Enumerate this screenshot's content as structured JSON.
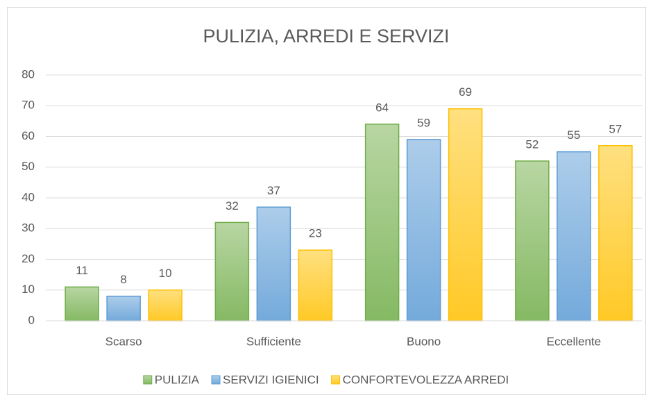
{
  "chart_data": {
    "type": "bar",
    "title": "PULIZIA, ARREDI E SERVIZI",
    "categories": [
      "Scarso",
      "Sufficiente",
      "Buono",
      "Eccellente"
    ],
    "series": [
      {
        "name": "PULIZIA",
        "color": "#70ad47",
        "values": [
          11,
          32,
          64,
          52
        ]
      },
      {
        "name": "SERVIZI IGIENICI",
        "color": "#5b9bd5",
        "values": [
          8,
          37,
          59,
          55
        ]
      },
      {
        "name": "CONFORTEVOLEZZA ARREDI",
        "color": "#ffc000",
        "values": [
          10,
          23,
          69,
          57
        ]
      }
    ],
    "ylim": [
      0,
      80
    ],
    "yticks": [
      0,
      10,
      20,
      30,
      40,
      50,
      60,
      70,
      80
    ],
    "grid": true,
    "legend": "bottom"
  }
}
